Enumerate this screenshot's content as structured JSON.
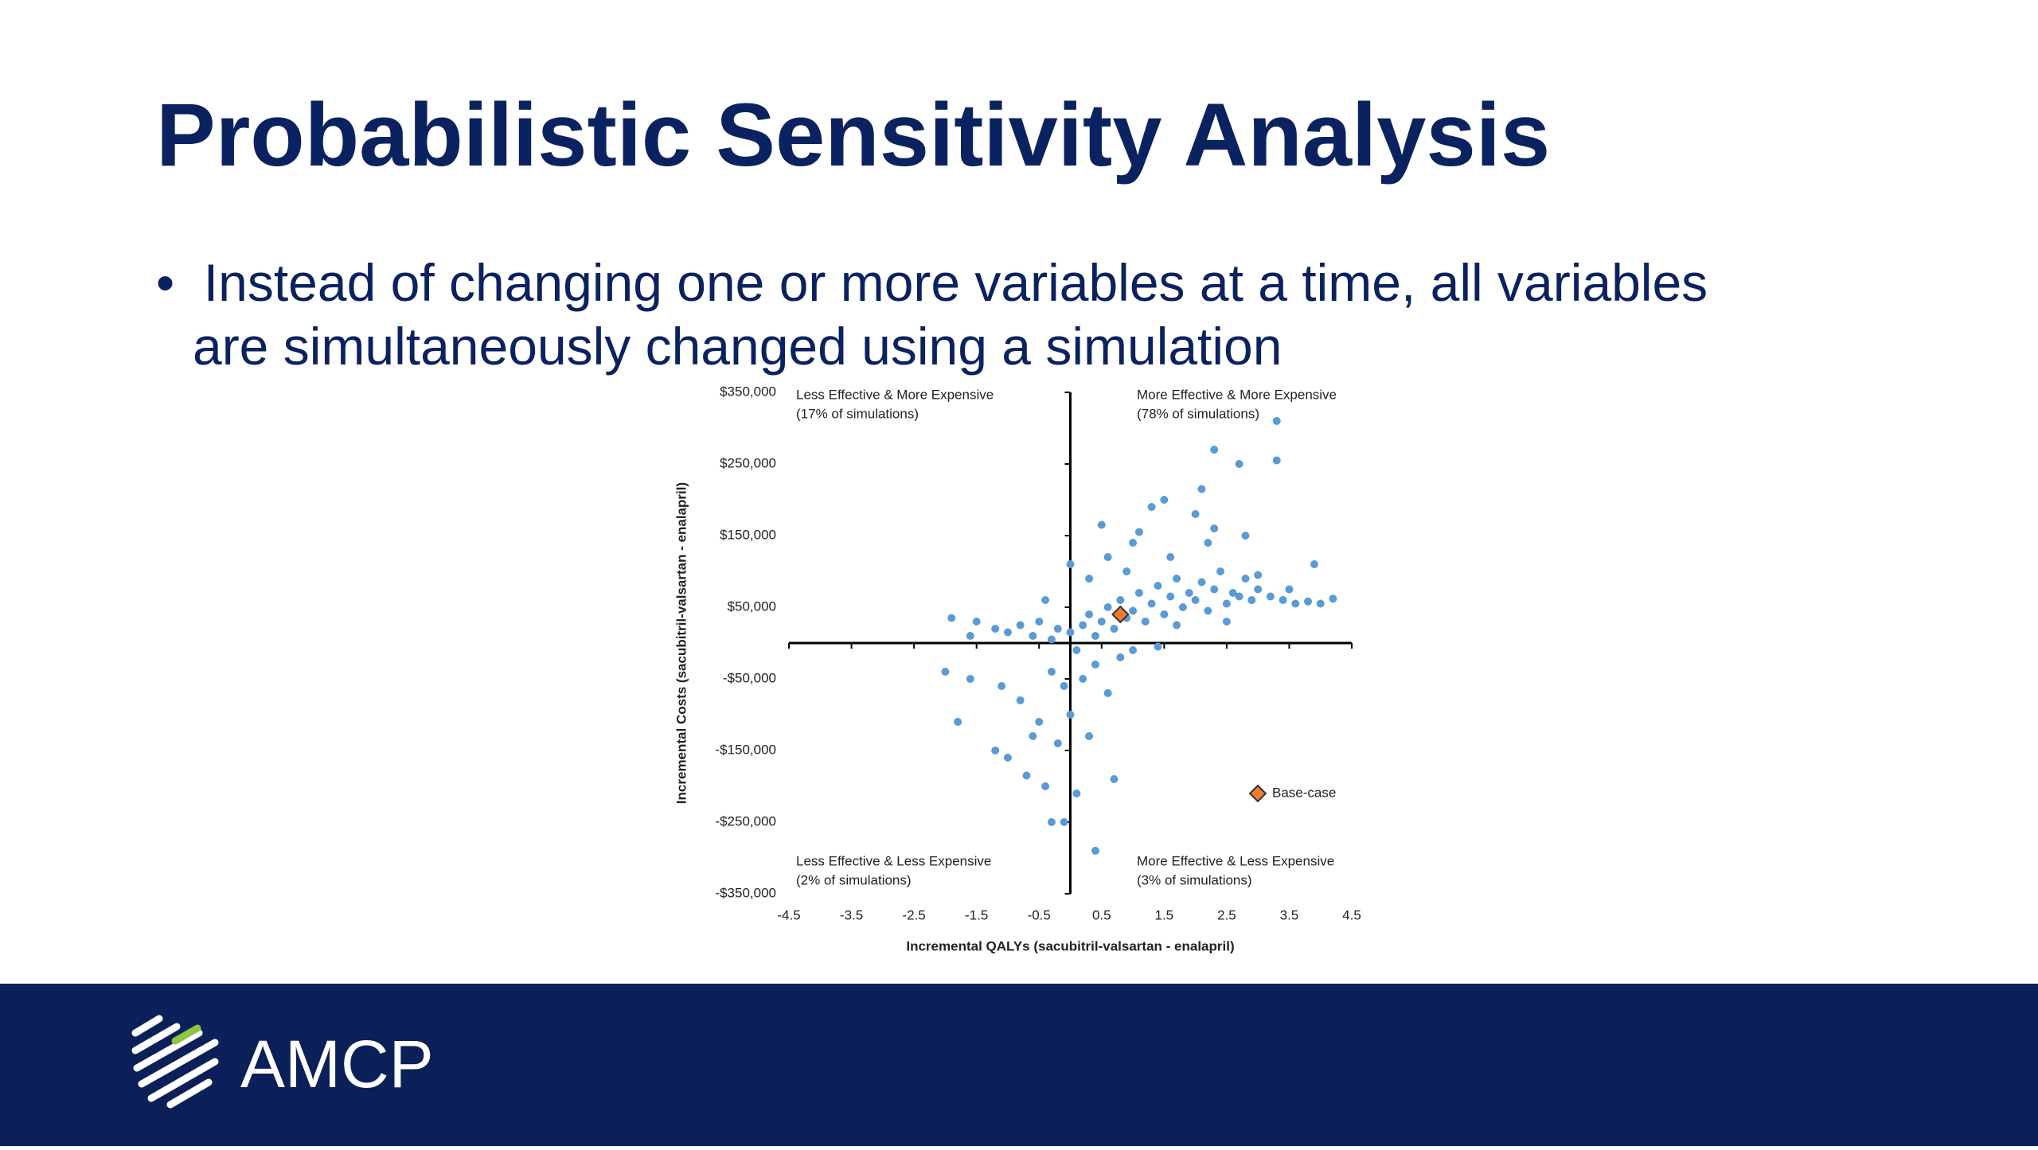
{
  "header": {
    "title": "Probabilistic Sensitivity Analysis"
  },
  "bullets": [
    "Instead of changing one or more variables at a time, all variables are simultaneously changed using a simulation"
  ],
  "chart_data": {
    "type": "scatter",
    "xlabel": "Incremental QALYs (sacubitril-valsartan - enalapril)",
    "ylabel": "Incremental Costs (sacubitril-valsartan - enalapril)",
    "xlim": [
      -4.5,
      4.5
    ],
    "xticks": [
      -4.5,
      -3.5,
      -2.5,
      -1.5,
      -0.5,
      0.5,
      1.5,
      2.5,
      3.5,
      4.5
    ],
    "ylim": [
      -350000,
      350000
    ],
    "yticks": [
      {
        "value": -350000,
        "label": "-$350,000"
      },
      {
        "value": -250000,
        "label": "-$250,000"
      },
      {
        "value": -150000,
        "label": "-$150,000"
      },
      {
        "value": -50000,
        "label": "-$50,000"
      },
      {
        "value": 50000,
        "label": "$50,000"
      },
      {
        "value": 150000,
        "label": "$150,000"
      },
      {
        "value": 250000,
        "label": "$250,000"
      },
      {
        "value": 350000,
        "label": "$350,000"
      }
    ],
    "annotations": [
      "Less Effective & More Expensive",
      "(17% of simulations)",
      "More Effective & More Expensive",
      "(78% of simulations)",
      "Less Effective & Less Expensive",
      "(2% of simulations)",
      "More Effective & Less Expensive",
      "(3% of simulations)"
    ],
    "series": [
      {
        "color": "#5b9bd5",
        "x": [
          -1.2,
          -1.0,
          -0.8,
          -0.6,
          -0.5,
          -0.3,
          -0.2,
          0,
          0.1,
          0.2,
          0.3,
          0.4,
          0.5,
          0.6,
          0.7,
          0.8,
          0.9,
          1.0,
          1.1,
          1.2,
          1.3,
          1.4,
          1.5,
          1.6,
          1.7,
          1.8,
          1.9,
          2.0,
          2.1,
          2.2,
          2.3,
          2.4,
          2.5,
          2.6,
          2.7,
          2.8,
          2.9,
          3.0,
          3.2,
          3.4,
          3.6,
          3.8,
          4.0,
          4.2,
          3.9,
          -0.3,
          -0.1,
          0.2,
          0.4,
          0.6,
          0.8,
          1.0,
          0.0,
          -0.5,
          -0.8,
          -1.1,
          -1.6,
          -2.0,
          -1.8,
          -1.2,
          -1.0,
          -0.7,
          -0.4,
          -0.3,
          -0.1,
          0.4,
          0.1,
          -0.2,
          0.3,
          0.7,
          -0.6,
          0.5,
          0.0,
          1.0,
          1.3,
          1.5,
          1.6,
          2.0,
          2.2,
          2.3,
          2.8,
          2.3,
          2.7,
          3.3,
          3.3,
          2.1,
          1.1,
          0.3,
          -0.4,
          -1.5,
          -1.9,
          -1.6,
          3.0,
          3.5,
          1.7,
          2.5,
          1.4,
          0.9,
          0.6
        ],
        "values": [
          20000,
          15000,
          25000,
          10000,
          30000,
          5000,
          20000,
          15000,
          -10000,
          25000,
          40000,
          10000,
          30000,
          50000,
          20000,
          60000,
          35000,
          45000,
          70000,
          30000,
          55000,
          80000,
          40000,
          65000,
          90000,
          50000,
          70000,
          60000,
          85000,
          45000,
          75000,
          100000,
          55000,
          70000,
          65000,
          90000,
          60000,
          75000,
          65000,
          60000,
          55000,
          58000,
          55000,
          62000,
          110000,
          -40000,
          -60000,
          -50000,
          -30000,
          -70000,
          -20000,
          -10000,
          -100000,
          -110000,
          -80000,
          -60000,
          -50000,
          -40000,
          -110000,
          -150000,
          -160000,
          -185000,
          -200000,
          -250000,
          -250000,
          -290000,
          -210000,
          -140000,
          -130000,
          -190000,
          -130000,
          165000,
          110000,
          140000,
          190000,
          200000,
          120000,
          180000,
          140000,
          160000,
          150000,
          270000,
          250000,
          255000,
          310000,
          215000,
          155000,
          90000,
          60000,
          30000,
          35000,
          10000,
          95000,
          75000,
          25000,
          30000,
          -5000,
          100000,
          120000
        ]
      },
      {
        "name": "Base-case",
        "color": "#ed7d31",
        "x": [
          0.8
        ],
        "values": [
          40000
        ]
      }
    ]
  }
}
